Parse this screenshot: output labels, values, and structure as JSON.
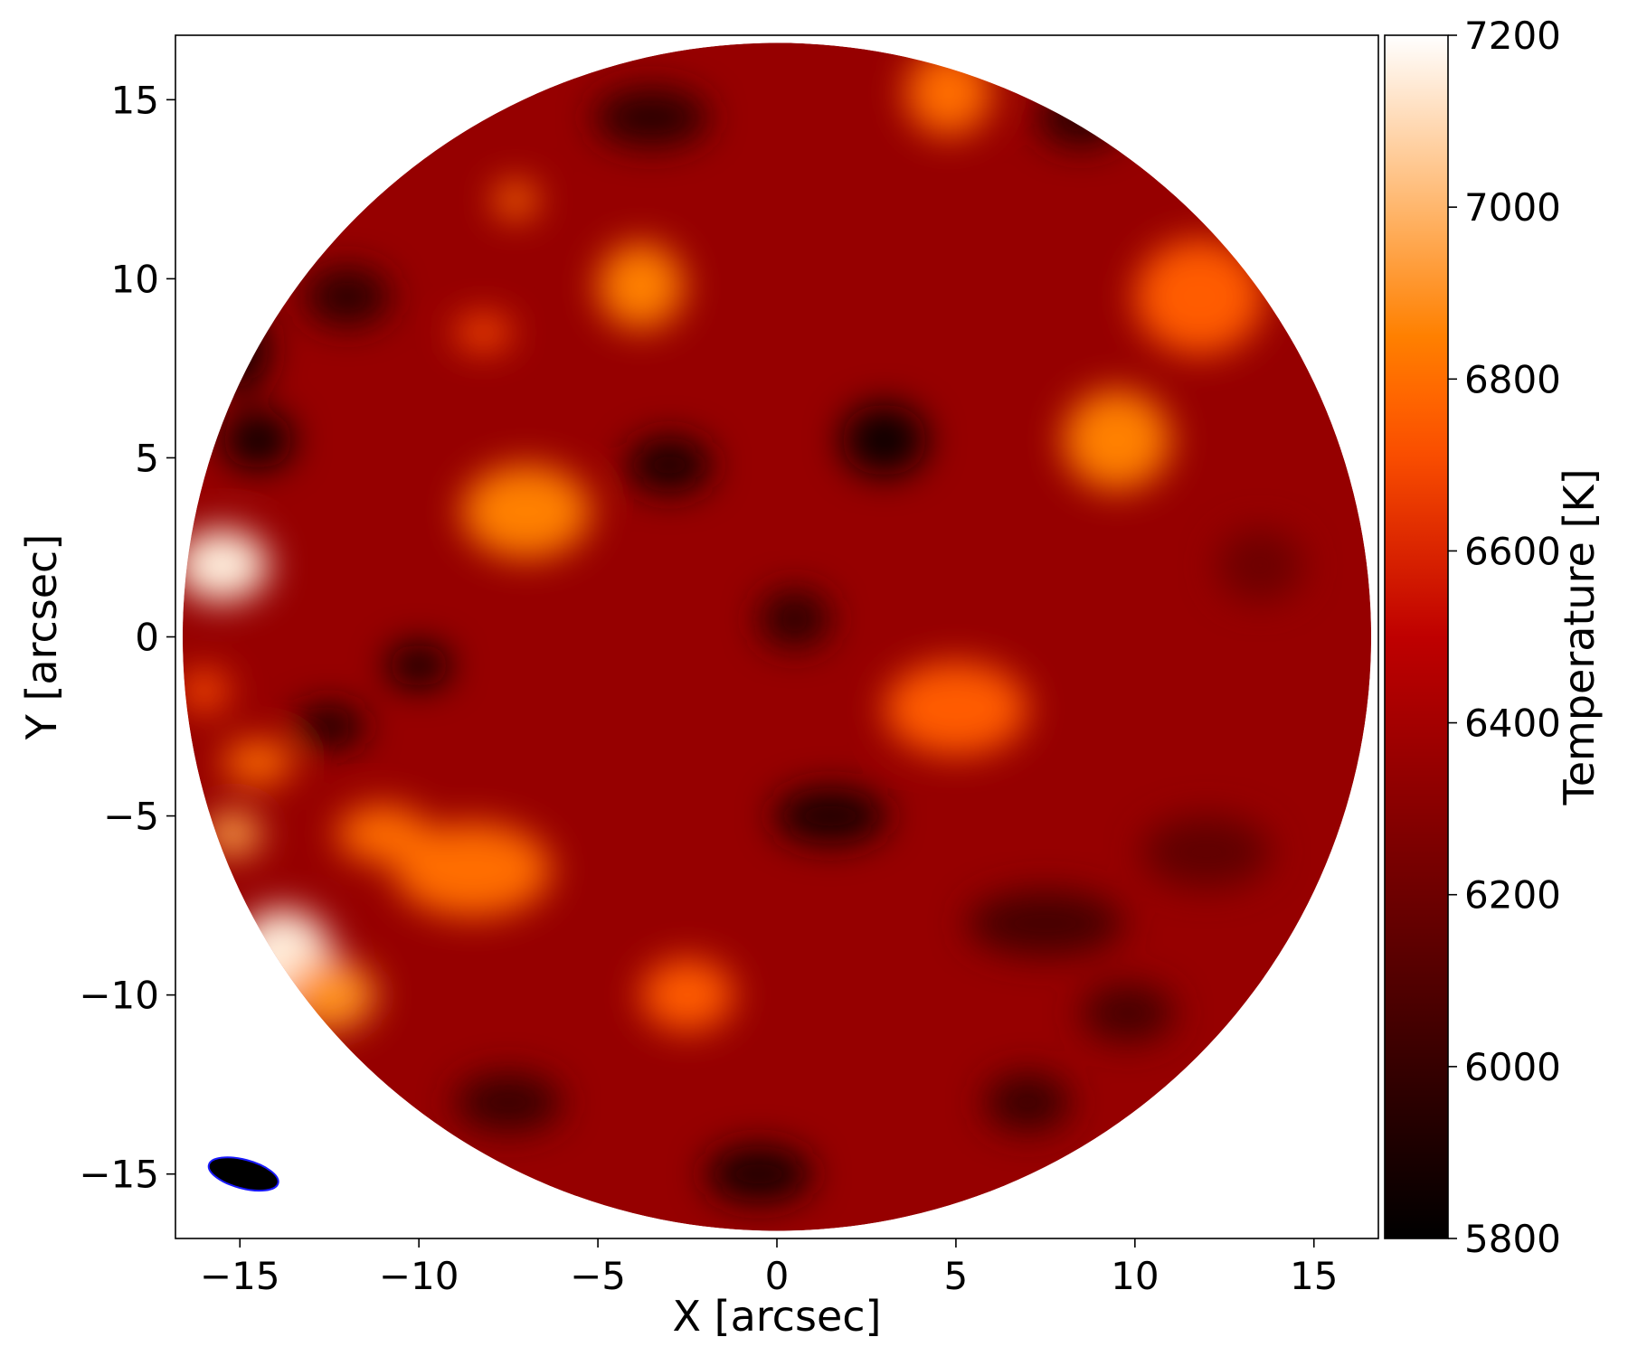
{
  "chart_data": {
    "type": "heatmap",
    "title": "",
    "xlabel": "X [arcsec]",
    "ylabel": "Y [arcsec]",
    "xlim": [
      -16.8,
      16.8
    ],
    "ylim": [
      -16.8,
      16.8
    ],
    "x_ticks": [
      -15,
      -10,
      -5,
      0,
      5,
      10,
      15
    ],
    "y_ticks": [
      -15,
      -10,
      -5,
      0,
      5,
      10,
      15
    ],
    "x_tick_labels": [
      "−15",
      "−10",
      "−5",
      "0",
      "5",
      "10",
      "15"
    ],
    "y_tick_labels": [
      "−15",
      "−10",
      "−5",
      "0",
      "5",
      "10",
      "15"
    ],
    "field_of_view": {
      "shape": "circle",
      "center": [
        0,
        0
      ],
      "radius": 16.6
    },
    "colorbar": {
      "label": "Temperature [K]",
      "min": 5800,
      "max": 7200,
      "ticks": [
        5800,
        6000,
        6200,
        6400,
        6600,
        6800,
        7000,
        7200
      ],
      "tick_labels": [
        "5800",
        "6000",
        "6200",
        "6400",
        "6600",
        "6800",
        "7000",
        "7200"
      ],
      "colormap": "gist_heat"
    },
    "background_temperature": 6350,
    "features": [
      {
        "x": -15.5,
        "y": 2.0,
        "temperature": 7150,
        "sx": 1.3,
        "sy": 1.0
      },
      {
        "x": -13.8,
        "y": -9.0,
        "temperature": 7150,
        "sx": 1.4,
        "sy": 1.4
      },
      {
        "x": -12.5,
        "y": -10.0,
        "temperature": 6900,
        "sx": 1.3,
        "sy": 1.0
      },
      {
        "x": -15.2,
        "y": -5.5,
        "temperature": 6950,
        "sx": 0.8,
        "sy": 0.6
      },
      {
        "x": -14.5,
        "y": -3.5,
        "temperature": 6800,
        "sx": 1.0,
        "sy": 0.6
      },
      {
        "x": -16.0,
        "y": -1.5,
        "temperature": 6700,
        "sx": 0.7,
        "sy": 0.6
      },
      {
        "x": -7.0,
        "y": 3.5,
        "temperature": 6850,
        "sx": 1.8,
        "sy": 1.3
      },
      {
        "x": -3.8,
        "y": 9.8,
        "temperature": 6850,
        "sx": 1.2,
        "sy": 1.2
      },
      {
        "x": -7.3,
        "y": 12.2,
        "temperature": 6800,
        "sx": 0.6,
        "sy": 0.5
      },
      {
        "x": -8.2,
        "y": 8.5,
        "temperature": 6700,
        "sx": 0.8,
        "sy": 0.5
      },
      {
        "x": 4.8,
        "y": 15.2,
        "temperature": 6800,
        "sx": 1.2,
        "sy": 1.2
      },
      {
        "x": 11.8,
        "y": 9.5,
        "temperature": 6750,
        "sx": 1.8,
        "sy": 1.6
      },
      {
        "x": 9.5,
        "y": 5.5,
        "temperature": 6850,
        "sx": 1.5,
        "sy": 1.4
      },
      {
        "x": 5.0,
        "y": -2.0,
        "temperature": 6750,
        "sx": 2.0,
        "sy": 1.3
      },
      {
        "x": -8.5,
        "y": -6.5,
        "temperature": 6800,
        "sx": 2.2,
        "sy": 1.3
      },
      {
        "x": -11.0,
        "y": -5.5,
        "temperature": 6800,
        "sx": 1.3,
        "sy": 0.8
      },
      {
        "x": -2.5,
        "y": -10.0,
        "temperature": 6750,
        "sx": 1.3,
        "sy": 1.0
      },
      {
        "x": 3.0,
        "y": 5.5,
        "temperature": 5850,
        "sx": 1.2,
        "sy": 1.0
      },
      {
        "x": -3.0,
        "y": 4.8,
        "temperature": 5900,
        "sx": 1.2,
        "sy": 0.8
      },
      {
        "x": -10.0,
        "y": -0.8,
        "temperature": 5850,
        "sx": 0.9,
        "sy": 0.6
      },
      {
        "x": -12.5,
        "y": -2.5,
        "temperature": 5900,
        "sx": 1.0,
        "sy": 0.6
      },
      {
        "x": -14.5,
        "y": 5.5,
        "temperature": 5850,
        "sx": 1.0,
        "sy": 0.8
      },
      {
        "x": -15.0,
        "y": 8.0,
        "temperature": 5900,
        "sx": 0.8,
        "sy": 1.2
      },
      {
        "x": -12.0,
        "y": 9.5,
        "temperature": 5950,
        "sx": 1.2,
        "sy": 0.8
      },
      {
        "x": -3.5,
        "y": 14.5,
        "temperature": 5950,
        "sx": 1.6,
        "sy": 0.8
      },
      {
        "x": 8.5,
        "y": 14.5,
        "temperature": 5950,
        "sx": 1.2,
        "sy": 0.8
      },
      {
        "x": 1.5,
        "y": -5.0,
        "temperature": 5900,
        "sx": 1.6,
        "sy": 0.8
      },
      {
        "x": -0.5,
        "y": -15.0,
        "temperature": 5900,
        "sx": 1.5,
        "sy": 0.8
      },
      {
        "x": 9.8,
        "y": -10.5,
        "temperature": 6050,
        "sx": 1.3,
        "sy": 0.8
      },
      {
        "x": -7.5,
        "y": -13.0,
        "temperature": 6000,
        "sx": 1.5,
        "sy": 0.8
      },
      {
        "x": 7.5,
        "y": -8.0,
        "temperature": 6050,
        "sx": 2.2,
        "sy": 0.9
      },
      {
        "x": 0.5,
        "y": 0.5,
        "temperature": 5950,
        "sx": 1.0,
        "sy": 0.8
      },
      {
        "x": 7.0,
        "y": -13.0,
        "temperature": 6000,
        "sx": 1.2,
        "sy": 0.8
      },
      {
        "x": 12.0,
        "y": -6.0,
        "temperature": 6150,
        "sx": 1.8,
        "sy": 1.0
      },
      {
        "x": 13.5,
        "y": 2.0,
        "temperature": 6200,
        "sx": 1.2,
        "sy": 1.0
      }
    ],
    "beam": {
      "shape": "ellipse",
      "center": [
        -14.9,
        -15.0
      ],
      "major_axis": 2.0,
      "minor_axis": 0.8,
      "position_angle_deg": -15,
      "fill": "#000000",
      "edge": "#1a1aff"
    }
  }
}
